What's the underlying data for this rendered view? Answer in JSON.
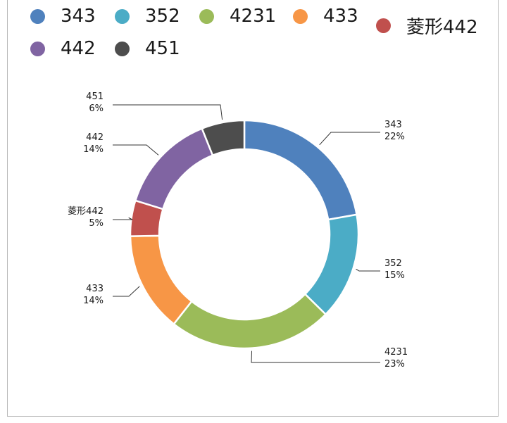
{
  "chart_data": {
    "type": "pie",
    "donut": true,
    "legend_position": "top",
    "categories": [
      "343",
      "352",
      "4231",
      "433",
      "菱形442",
      "442",
      "451"
    ],
    "values": [
      22,
      15,
      23,
      14,
      5,
      14,
      6
    ],
    "labels": [
      "22%",
      "15%",
      "23%",
      "14%",
      "5%",
      "14%",
      "6%"
    ],
    "colors": [
      "#4f81bd",
      "#4bacc6",
      "#9bbb59",
      "#f79646",
      "#c0504d",
      "#8064a2",
      "#4d4d4d"
    ]
  }
}
